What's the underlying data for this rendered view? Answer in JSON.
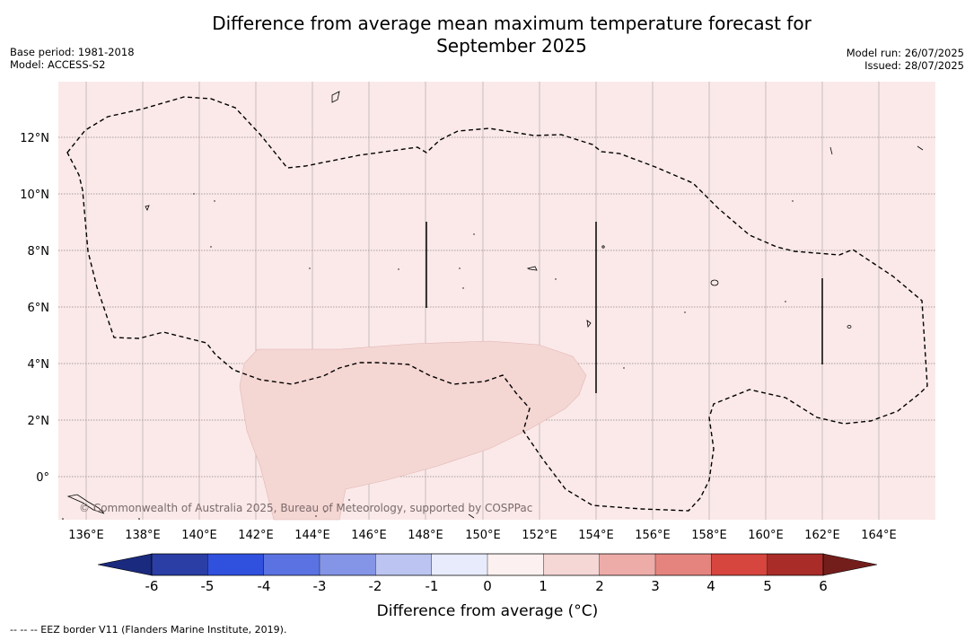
{
  "title_line1": "Difference from average mean maximum temperature forecast for",
  "title_line2": "September 2025",
  "base_period": "Base period: 1981-2018",
  "model": "Model: ACCESS-S2",
  "model_run": "Model run: 26/07/2025",
  "issued": "Issued: 28/07/2025",
  "copyright": "© Commonwealth of Australia 2025, Bureau of Meteorology, supported by COSPPac",
  "footnote": "--  --  -- EEZ border V11 (Flanders Marine Institute, 2019).",
  "x_ticks": [
    "136°E",
    "138°E",
    "140°E",
    "142°E",
    "144°E",
    "146°E",
    "148°E",
    "150°E",
    "152°E",
    "154°E",
    "156°E",
    "158°E",
    "160°E",
    "162°E",
    "164°E"
  ],
  "y_ticks": [
    "12°N",
    "10°N",
    "8°N",
    "6°N",
    "4°N",
    "2°N",
    "0°"
  ],
  "colorbar": {
    "label": "Difference from average (°C)",
    "ticks": [
      "-6",
      "-5",
      "-4",
      "-3",
      "-2",
      "-1",
      "0",
      "1",
      "2",
      "3",
      "4",
      "5",
      "6"
    ],
    "colors": [
      "#2a3ea5",
      "#3050de",
      "#5a72e2",
      "#8494e6",
      "#bcc4f1",
      "#e8ebfb",
      "#fdf0f0",
      "#f5d7d5",
      "#edaca8",
      "#e5847e",
      "#d6453e",
      "#a92c28"
    ],
    "extend_low": "#1a2a7e",
    "extend_high": "#741e1c"
  },
  "map": {
    "background_color": "#fbe9e9",
    "anomaly_region_color": "#f4d6d3",
    "anomaly_category": "1 to 2"
  }
}
